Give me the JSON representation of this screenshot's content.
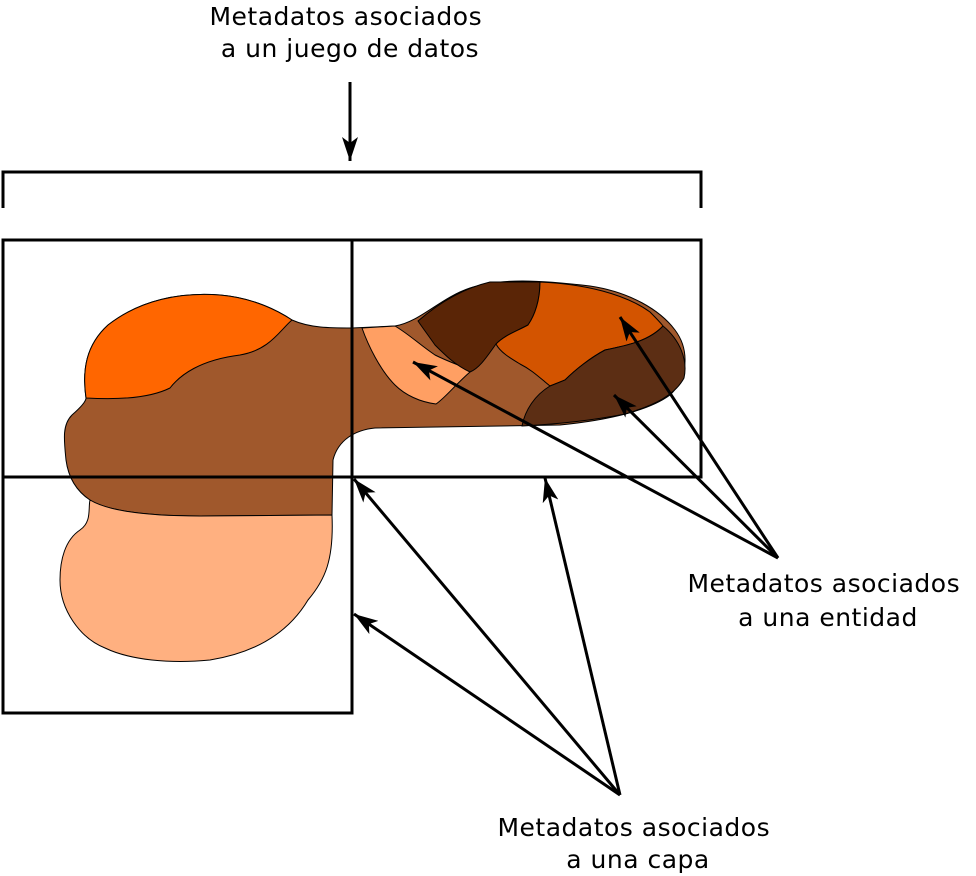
{
  "labels": {
    "dataset": [
      "Metadatos asociados",
      "a un juego de datos"
    ],
    "entity": [
      "Metadatos asociados",
      "a una entidad"
    ],
    "layer": [
      "Metadatos asociados",
      "a una capa"
    ]
  },
  "colors": {
    "blob_main": "#A0582C",
    "region_orange": "#FF6600",
    "region_light": "#FFB080",
    "region_salmon": "#FF9F63",
    "region_dark": "#5A2506",
    "region_rust": "#D35400",
    "region_darkbrown": "#5C2E14",
    "line": "#000000",
    "background": "#FFFFFF"
  }
}
